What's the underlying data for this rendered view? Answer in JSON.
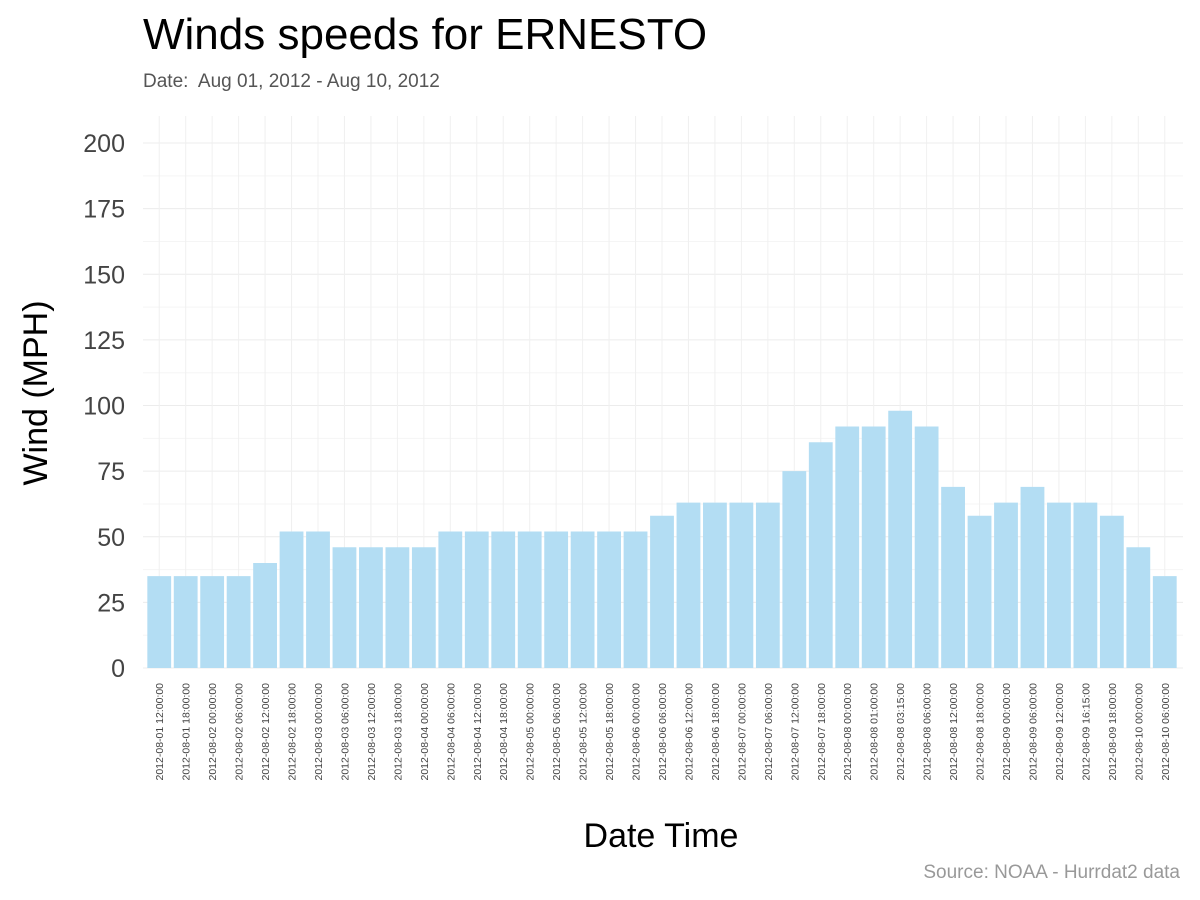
{
  "title": "Winds speeds for ERNESTO",
  "subtitle": "Date:  Aug 01, 2012 - Aug 10, 2012",
  "caption": "Source: NOAA - Hurrdat2 data",
  "chart_data": {
    "type": "bar",
    "title": "Winds speeds for ERNESTO",
    "subtitle": "Date:  Aug 01, 2012 - Aug 10, 2012",
    "xlabel": "Date Time",
    "ylabel": "Wind (MPH)",
    "ylim": [
      0,
      210
    ],
    "yticks": [
      0,
      25,
      50,
      75,
      100,
      125,
      150,
      175,
      200
    ],
    "grid": true,
    "bar_color": "#b3ddf3",
    "categories": [
      "2012-08-01 12:00:00",
      "2012-08-01 18:00:00",
      "2012-08-02 00:00:00",
      "2012-08-02 06:00:00",
      "2012-08-02 12:00:00",
      "2012-08-02 18:00:00",
      "2012-08-03 00:00:00",
      "2012-08-03 06:00:00",
      "2012-08-03 12:00:00",
      "2012-08-03 18:00:00",
      "2012-08-04 00:00:00",
      "2012-08-04 06:00:00",
      "2012-08-04 12:00:00",
      "2012-08-04 18:00:00",
      "2012-08-05 00:00:00",
      "2012-08-05 06:00:00",
      "2012-08-05 12:00:00",
      "2012-08-05 18:00:00",
      "2012-08-06 00:00:00",
      "2012-08-06 06:00:00",
      "2012-08-06 12:00:00",
      "2012-08-06 18:00:00",
      "2012-08-07 00:00:00",
      "2012-08-07 06:00:00",
      "2012-08-07 12:00:00",
      "2012-08-07 18:00:00",
      "2012-08-08 00:00:00",
      "2012-08-08 01:00:00",
      "2012-08-08 03:15:00",
      "2012-08-08 06:00:00",
      "2012-08-08 12:00:00",
      "2012-08-08 18:00:00",
      "2012-08-09 00:00:00",
      "2012-08-09 06:00:00",
      "2012-08-09 12:00:00",
      "2012-08-09 16:15:00",
      "2012-08-09 18:00:00",
      "2012-08-10 00:00:00",
      "2012-08-10 06:00:00"
    ],
    "values": [
      35,
      35,
      35,
      35,
      40,
      52,
      52,
      46,
      46,
      46,
      46,
      52,
      52,
      52,
      52,
      52,
      52,
      52,
      52,
      58,
      63,
      63,
      63,
      63,
      75,
      86,
      92,
      92,
      98,
      92,
      69,
      58,
      63,
      69,
      63,
      63,
      58,
      46,
      35
    ]
  }
}
